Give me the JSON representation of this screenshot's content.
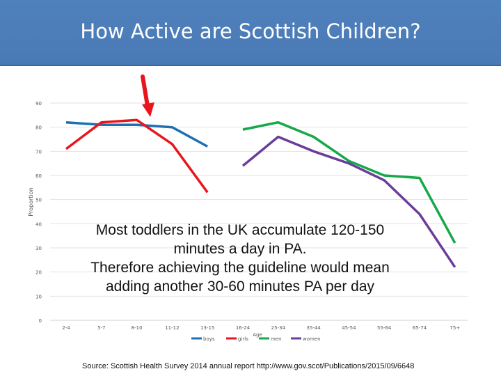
{
  "header": {
    "title": "How Active are Scottish Children?"
  },
  "chart_data": {
    "type": "line",
    "title": "",
    "xlabel": "Age",
    "ylabel": "Proportion",
    "ylim": [
      0,
      90
    ],
    "yticks": [
      0,
      10,
      20,
      30,
      40,
      50,
      60,
      70,
      80,
      90
    ],
    "categories": [
      "2-4",
      "5-7",
      "8-10",
      "11-12",
      "13-15",
      "16-24",
      "25-34",
      "35-44",
      "45-54",
      "55-64",
      "65-74",
      "75+"
    ],
    "grid": true,
    "legend_position": "bottom",
    "series": [
      {
        "name": "boys",
        "color": "#1f6fb4",
        "values": [
          82,
          81,
          81,
          80,
          72,
          null,
          null,
          null,
          null,
          null,
          null,
          null
        ]
      },
      {
        "name": "girls",
        "color": "#e8161c",
        "values": [
          71,
          82,
          83,
          73,
          53,
          null,
          null,
          null,
          null,
          null,
          null,
          null
        ]
      },
      {
        "name": "men",
        "color": "#17a84a",
        "values": [
          null,
          null,
          null,
          null,
          null,
          79,
          82,
          76,
          66,
          60,
          59,
          32
        ]
      },
      {
        "name": "women",
        "color": "#6a3d9a",
        "values": [
          null,
          null,
          null,
          null,
          null,
          64,
          76,
          70,
          65,
          58,
          44,
          22
        ]
      }
    ],
    "annotation": {
      "type": "arrow",
      "color": "#e8161c",
      "points_to": "8-10"
    }
  },
  "note": {
    "lines": [
      "Most toddlers in the UK accumulate 120-150",
      "minutes a day in PA.",
      "Therefore achieving the guideline would mean",
      "adding another 30-60 minutes PA per day"
    ]
  },
  "footer": {
    "source": "Source: Scottish Health Survey 2014 annual report  http://www.gov.scot/Publications/2015/09/6648"
  }
}
